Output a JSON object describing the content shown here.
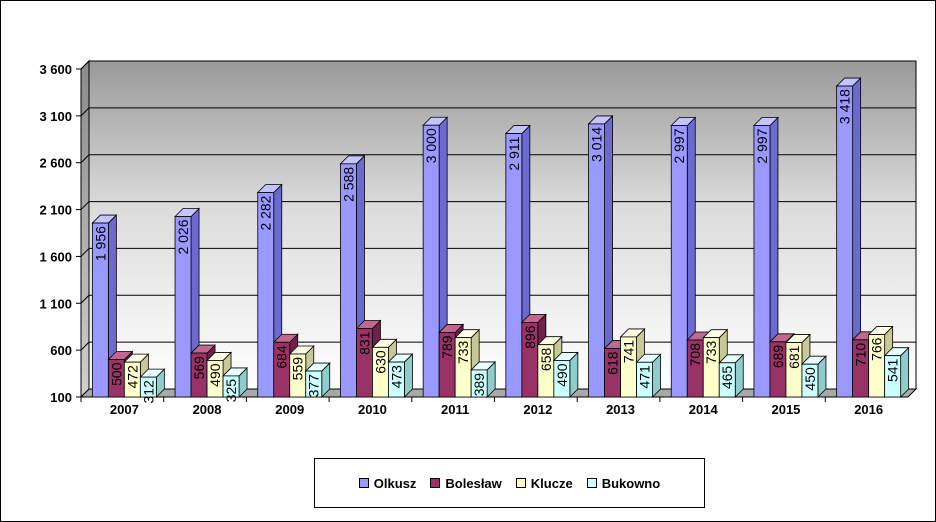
{
  "chart_data": {
    "type": "bar",
    "categories": [
      "2007",
      "2008",
      "2009",
      "2010",
      "2011",
      "2012",
      "2013",
      "2014",
      "2015",
      "2016"
    ],
    "series": [
      {
        "name": "Olkusz",
        "color": "#9999ff",
        "side": "#6a6ad0",
        "top": "#c4c4ff",
        "values": [
          1956,
          2026,
          2282,
          2588,
          3000,
          2911,
          3014,
          2997,
          2997,
          3418
        ],
        "labels": [
          "1 956",
          "2 026",
          "2 282",
          "2 588",
          "3 000",
          "2 911",
          "3 014",
          "2 997",
          "2 997",
          "3 418"
        ]
      },
      {
        "name": "Bolesław",
        "color": "#993366",
        "side": "#6e2249",
        "top": "#c0688f",
        "values": [
          500,
          569,
          684,
          831,
          789,
          896,
          618,
          708,
          689,
          710
        ],
        "labels": [
          "500",
          "569",
          "684",
          "831",
          "789",
          "896",
          "618",
          "708",
          "689",
          "710"
        ]
      },
      {
        "name": "Klucze",
        "color": "#ffffcc",
        "side": "#c8c896",
        "top": "#ffffe8",
        "values": [
          472,
          490,
          559,
          630,
          733,
          658,
          741,
          733,
          681,
          766
        ],
        "labels": [
          "472",
          "490",
          "559",
          "630",
          "733",
          "658",
          "741",
          "733",
          "681",
          "766"
        ]
      },
      {
        "name": "Bukowno",
        "color": "#ccffff",
        "side": "#8fcccc",
        "top": "#e8ffff",
        "values": [
          312,
          325,
          377,
          473,
          389,
          490,
          471,
          465,
          450,
          541
        ],
        "labels": [
          "312",
          "325",
          "377",
          "473",
          "389",
          "490",
          "471",
          "465",
          "450",
          "541"
        ]
      }
    ],
    "ylim": [
      100,
      3600
    ],
    "yticks": [
      100,
      600,
      1100,
      1600,
      2100,
      2600,
      3100,
      3600
    ],
    "ytick_labels": [
      "100",
      "600",
      "1 100",
      "1 600",
      "2 100",
      "2 600",
      "3 100",
      "3 600"
    ],
    "grid": true,
    "legend_position": "bottom",
    "title": "",
    "xlabel": "",
    "ylabel": ""
  }
}
